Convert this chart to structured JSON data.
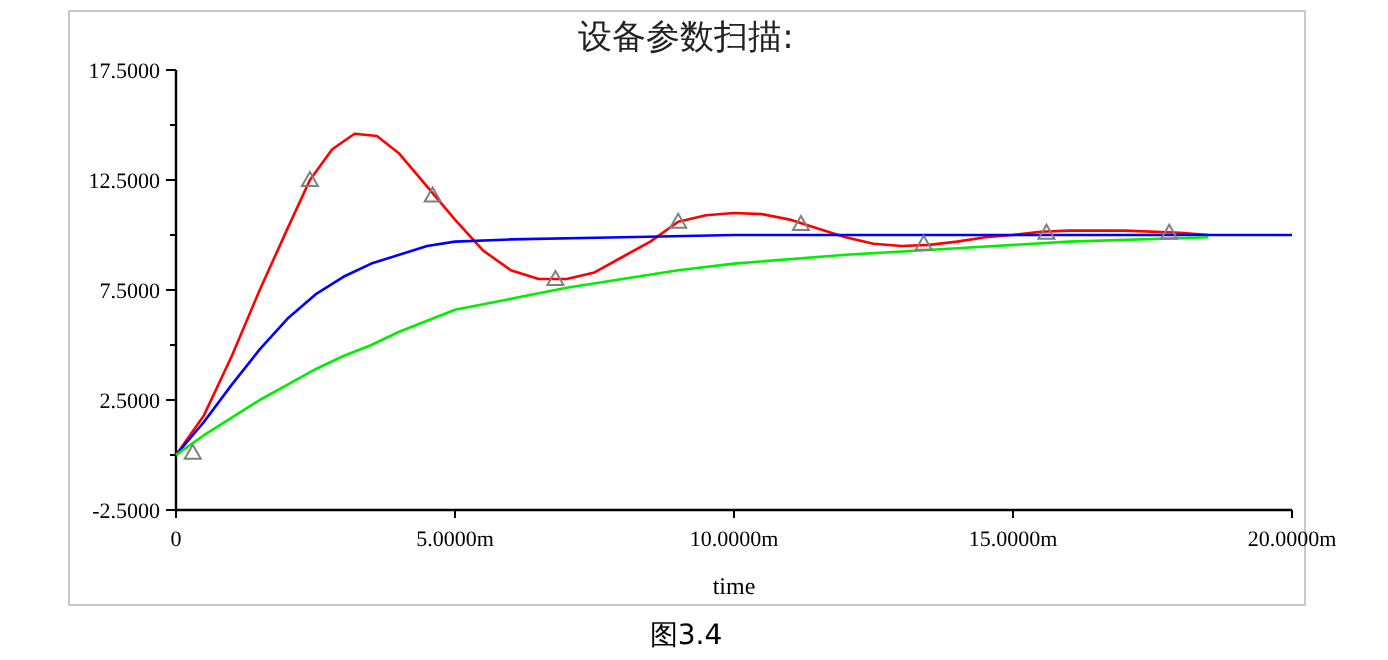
{
  "chart_data": {
    "type": "line",
    "title": "设备参数扫描:",
    "xlabel": "time",
    "annotations": [
      "图3.4"
    ],
    "xlim": [
      0,
      20
    ],
    "ylim": [
      -2.5,
      17.5
    ],
    "xticks": [
      0,
      {
        "value": 5,
        "label": "5.0000m"
      },
      {
        "value": 10,
        "label": "10.0000m"
      },
      {
        "value": 15,
        "label": "15.0000m"
      },
      {
        "value": 20,
        "label": "20.0000m"
      }
    ],
    "yticks": [
      {
        "value": -2.5,
        "label": "-2.5000"
      },
      {
        "value": 0,
        "label": null
      },
      {
        "value": 2.5,
        "label": "2.5000"
      },
      {
        "value": 5,
        "label": null
      },
      {
        "value": 7.5,
        "label": "7.5000"
      },
      {
        "value": 10,
        "label": null
      },
      {
        "value": 12.5,
        "label": "12.5000"
      },
      {
        "value": 15,
        "label": null
      },
      {
        "value": 17.5,
        "label": "17.5000"
      }
    ],
    "series": [
      {
        "color": "#ff0000",
        "x": [
          0,
          0.5,
          1,
          1.5,
          2,
          2.4,
          2.8,
          3.2,
          3.6,
          4,
          4.6,
          5,
          5.5,
          6,
          6.5,
          7,
          7.5,
          8,
          8.5,
          9,
          9.5,
          10,
          10.5,
          11,
          11.5,
          12,
          12.5,
          13,
          13.5,
          14,
          14.5,
          15,
          15.5,
          16,
          17,
          18,
          18.5
        ],
        "values": [
          0,
          1.8,
          4.5,
          7.5,
          10.3,
          12.5,
          13.9,
          14.6,
          14.5,
          13.7,
          11.9,
          10.7,
          9.3,
          8.4,
          8.0,
          8.0,
          8.3,
          9.0,
          9.7,
          10.6,
          10.9,
          11.0,
          10.95,
          10.7,
          10.3,
          9.9,
          9.6,
          9.5,
          9.55,
          9.7,
          9.9,
          10.0,
          10.15,
          10.2,
          10.2,
          10.1,
          10.0
        ]
      },
      {
        "color": "#0000ff",
        "x": [
          0,
          0.5,
          1,
          1.5,
          2,
          2.5,
          3,
          3.5,
          4,
          4.5,
          5,
          6,
          8,
          10,
          20
        ],
        "values": [
          0,
          1.5,
          3.2,
          4.8,
          6.2,
          7.3,
          8.1,
          8.7,
          9.1,
          9.5,
          9.7,
          9.8,
          9.9,
          10.0,
          10.0
        ]
      },
      {
        "color": "#00ee00",
        "x": [
          0,
          0.5,
          1,
          1.5,
          2,
          2.5,
          3,
          3.5,
          4,
          4.5,
          5,
          6,
          7,
          8,
          9,
          10,
          12,
          14,
          16,
          18.5
        ],
        "values": [
          0,
          0.9,
          1.7,
          2.5,
          3.2,
          3.9,
          4.5,
          5.0,
          5.6,
          6.1,
          6.6,
          7.1,
          7.6,
          8.0,
          8.4,
          8.7,
          9.1,
          9.4,
          9.7,
          9.9
        ]
      },
      {
        "type": "scatter",
        "marker": "triangle",
        "color": "#808080",
        "x": [
          0.3,
          2.4,
          4.6,
          6.8,
          9.0,
          11.2,
          13.4,
          15.6,
          17.8
        ],
        "values": [
          0.1,
          12.5,
          11.8,
          8.0,
          10.6,
          10.5,
          9.6,
          10.1,
          10.1
        ]
      }
    ]
  }
}
